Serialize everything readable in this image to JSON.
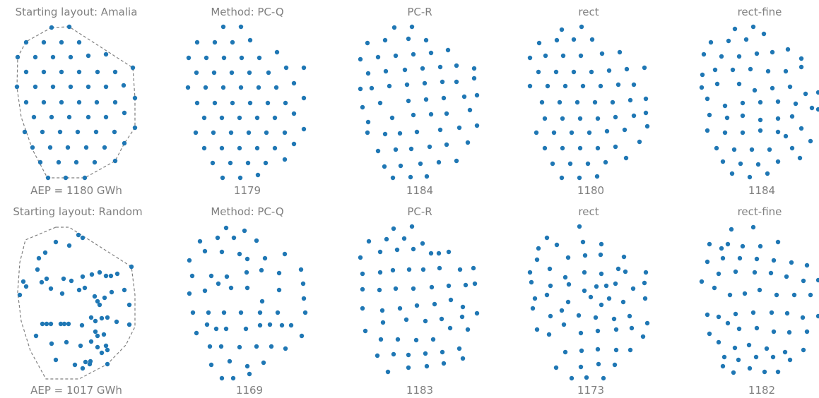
{
  "figure": {
    "boundary_color": "#808080",
    "point_color": "#1f77b4",
    "text_color": "#808080"
  },
  "chart_data": [
    {
      "type": "scatter",
      "row": 0,
      "col": 0,
      "title": "Starting layout: Amalia",
      "caption": "AEP = 1180 GWh",
      "boundary": [
        [
          23,
          0
        ],
        [
          28,
          -35
        ],
        [
          54,
          -58
        ],
        [
          73,
          -62
        ],
        [
          114,
          -36
        ],
        [
          125,
          -9
        ],
        [
          127,
          25
        ],
        [
          125,
          57
        ],
        [
          113,
          84
        ],
        [
          94,
          98
        ],
        [
          54,
          112
        ],
        [
          23,
          -1
        ]
      ],
      "points": [
        [
          73,
          -62
        ],
        [
          98,
          -62
        ],
        [
          37,
          -49
        ],
        [
          61,
          -49
        ],
        [
          86,
          -49
        ],
        [
          111,
          -49
        ],
        [
          24,
          -29
        ],
        [
          49,
          -29
        ],
        [
          74,
          -29
        ],
        [
          99,
          -29
        ],
        [
          124,
          -29
        ],
        [
          149,
          -29
        ],
        [
          36,
          -9
        ],
        [
          61,
          -9
        ],
        [
          86,
          -9
        ],
        [
          111,
          -9
        ],
        [
          136,
          -9
        ],
        [
          161,
          -9
        ],
        [
          186,
          -4
        ],
        [
          24,
          12
        ],
        [
          49,
          12
        ],
        [
          74,
          12
        ],
        [
          99,
          12
        ],
        [
          124,
          12
        ],
        [
          149,
          12
        ],
        [
          174,
          12
        ],
        [
          36,
          33
        ],
        [
          61,
          33
        ],
        [
          86,
          33
        ],
        [
          111,
          33
        ],
        [
          136,
          33
        ],
        [
          161,
          33
        ],
        [
          186,
          33
        ],
        [
          24,
          53
        ],
        [
          49,
          53
        ],
        [
          74,
          53
        ],
        [
          99,
          53
        ],
        [
          124,
          53
        ],
        [
          149,
          53
        ],
        [
          174,
          53
        ],
        [
          36,
          74
        ],
        [
          61,
          74
        ],
        [
          86,
          74
        ],
        [
          111,
          74
        ],
        [
          136,
          74
        ],
        [
          161,
          74
        ],
        [
          49,
          95
        ],
        [
          74,
          95
        ],
        [
          99,
          95
        ],
        [
          124,
          95
        ],
        [
          149,
          95
        ],
        [
          67,
          116
        ],
        [
          93,
          116
        ],
        [
          119,
          116
        ]
      ],
      "note_units": "pixel-space grid layout; see script"
    },
    {
      "type": "scatter",
      "row": 0,
      "col": 1,
      "title": "Method: PC-Q",
      "caption": "1179"
    },
    {
      "type": "scatter",
      "row": 0,
      "col": 2,
      "title": "PC-R",
      "caption": "1184"
    },
    {
      "type": "scatter",
      "row": 0,
      "col": 3,
      "title": "rect",
      "caption": "1180"
    },
    {
      "type": "scatter",
      "row": 0,
      "col": 4,
      "title": "rect-fine",
      "caption": "1184"
    },
    {
      "type": "scatter",
      "row": 1,
      "col": 0,
      "title": "Starting layout: Random",
      "caption": "AEP = 1017 GWh"
    },
    {
      "type": "scatter",
      "row": 1,
      "col": 1,
      "title": "Method: PC-Q",
      "caption": "1169"
    },
    {
      "type": "scatter",
      "row": 1,
      "col": 2,
      "title": "PC-R",
      "caption": "1183"
    },
    {
      "type": "scatter",
      "row": 1,
      "col": 3,
      "title": "rect",
      "caption": "1173"
    },
    {
      "type": "scatter",
      "row": 1,
      "col": 4,
      "title": "rect-fine",
      "caption": "1182"
    }
  ]
}
